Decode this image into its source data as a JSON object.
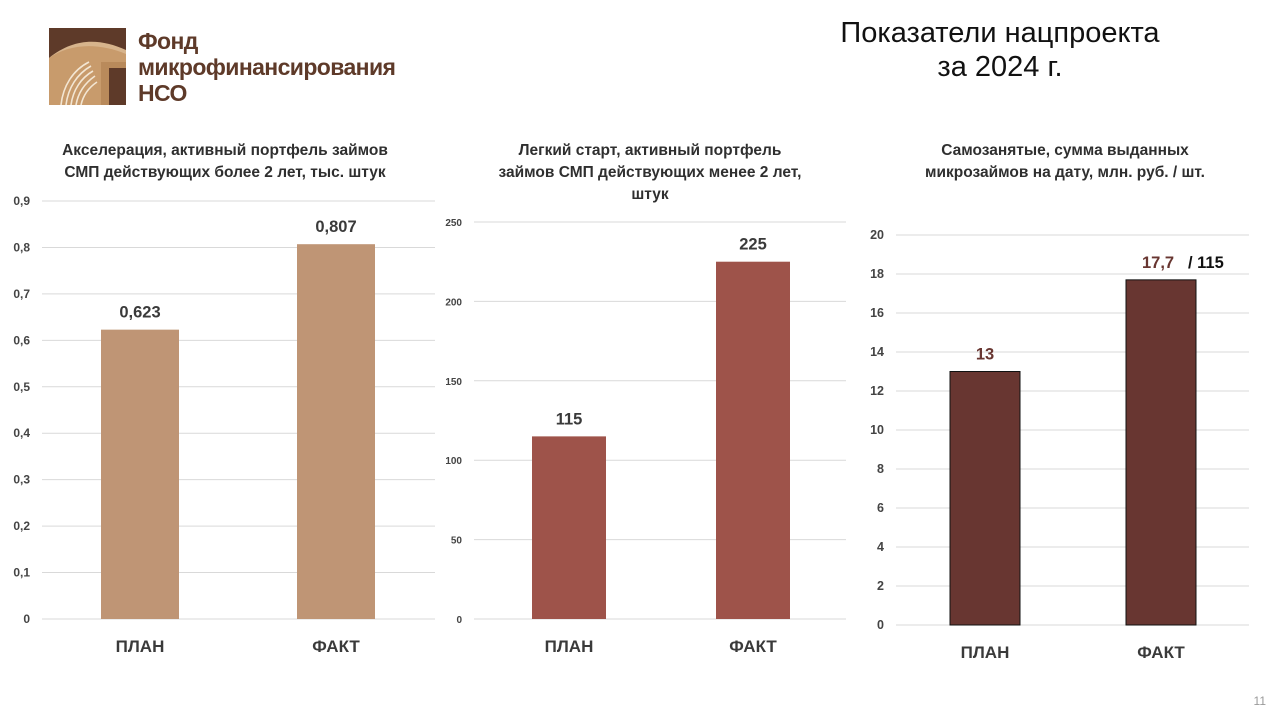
{
  "logo": {
    "lines": [
      "Фонд",
      "микрофинансирования",
      "НСО"
    ],
    "icon": "coin-stack-logo-icon"
  },
  "page_title": {
    "line1": "Показатели нацпроекта",
    "line2": "за 2024 г."
  },
  "slide_number": "11",
  "colors": {
    "bar1": "#bf9575",
    "bar2": "#9e534a",
    "bar3": "#683631",
    "logo": "#5e3a29",
    "grid": "#d9d9d9"
  },
  "chart_data": [
    {
      "type": "bar",
      "title_lines": [
        "Акселерация, активный портфель займов",
        "СМП действующих более 2 лет, тыс. штук"
      ],
      "categories": [
        "ПЛАН",
        "ФАКТ"
      ],
      "values": [
        0.623,
        0.807
      ],
      "value_labels": [
        "0,623",
        "0,807"
      ],
      "yticks": [
        "0",
        "0,1",
        "0,2",
        "0,3",
        "0,4",
        "0,5",
        "0,6",
        "0,7",
        "0,8",
        "0,9"
      ],
      "ylim": [
        0,
        0.9
      ],
      "grid": true
    },
    {
      "type": "bar",
      "title_lines": [
        "Легкий старт, активный портфель",
        "займов СМП действующих менее 2 лет,",
        "штук"
      ],
      "categories": [
        "ПЛАН",
        "ФАКТ"
      ],
      "values": [
        115,
        225
      ],
      "value_labels": [
        "115",
        "225"
      ],
      "yticks": [
        "0",
        "50",
        "100",
        "150",
        "200",
        "250"
      ],
      "ylim": [
        0,
        250
      ],
      "grid": true
    },
    {
      "type": "bar",
      "title_lines": [
        "Самозанятые, сумма выданных",
        "микрозаймов на дату, млн. руб. / шт."
      ],
      "categories": [
        "ПЛАН",
        "ФАКТ"
      ],
      "values": [
        13,
        17.7
      ],
      "value_labels": [
        "13",
        "17,7"
      ],
      "extra_label": "/ 115",
      "yticks": [
        "0",
        "2",
        "4",
        "6",
        "8",
        "10",
        "12",
        "14",
        "16",
        "18",
        "20"
      ],
      "ylim": [
        0,
        20
      ],
      "grid": true
    }
  ]
}
